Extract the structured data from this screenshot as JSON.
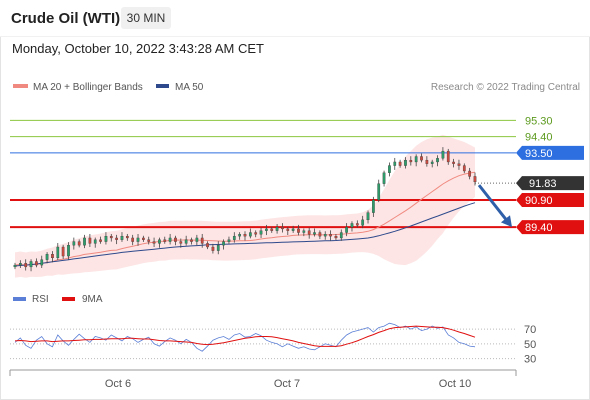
{
  "header": {
    "title": "Crude Oil (WTI)",
    "interval": "30 MIN",
    "timestamp": "Monday, October 10, 2022 3:43:28 AM CET",
    "credit": "Research © 2022 Trading Central"
  },
  "colors": {
    "ma20": "#f08a80",
    "band_fill": "#fde0e0",
    "ma50": "#2e4a8c",
    "price_up": "#2e9b6a",
    "price_down": "#c94a40",
    "resistance_green": "#8cc63f",
    "resistance_blue": "#2d6fe0",
    "support_red": "#e01010",
    "last_price": "#333333",
    "arrow": "#2e5fa8",
    "rsi": "#5b7fd6",
    "rsi_ma": "#e01010"
  },
  "chart_data": [
    {
      "type": "candlestick",
      "legend": [
        "MA 20 + Bollinger Bands",
        "MA 50"
      ],
      "x_tick_labels": [
        "Oct 6",
        "Oct 7",
        "Oct 10"
      ],
      "ylim": [
        86.2,
        96.7
      ],
      "levels": [
        {
          "value": 95.3,
          "label": "95.30",
          "kind": "resistance",
          "color": "#8cc63f"
        },
        {
          "value": 94.4,
          "label": "94.40",
          "kind": "resistance",
          "color": "#8cc63f"
        },
        {
          "value": 93.5,
          "label": "93.50",
          "kind": "pivot",
          "color": "#2d6fe0"
        },
        {
          "value": 90.9,
          "label": "90.90",
          "kind": "support",
          "color": "#e01010"
        },
        {
          "value": 89.4,
          "label": "89.40",
          "kind": "support",
          "color": "#e01010"
        }
      ],
      "last_price": {
        "value": 91.83,
        "label": "91.83"
      },
      "close": [
        87.3,
        87.4,
        87.2,
        87.5,
        87.3,
        87.6,
        87.9,
        87.7,
        88.3,
        87.8,
        88.4,
        88.6,
        88.4,
        88.8,
        88.5,
        88.7,
        88.6,
        88.9,
        88.8,
        88.7,
        88.9,
        88.8,
        88.6,
        88.8,
        88.7,
        88.6,
        88.5,
        88.7,
        88.6,
        88.8,
        88.6,
        88.5,
        88.7,
        88.6,
        88.8,
        88.5,
        88.3,
        88.1,
        88.4,
        88.6,
        88.7,
        88.9,
        89.0,
        88.9,
        89.1,
        89.0,
        89.2,
        89.3,
        89.2,
        89.4,
        89.3,
        89.2,
        89.3,
        89.1,
        89.2,
        89.0,
        89.1,
        88.9,
        89.0,
        88.9,
        88.8,
        89.1,
        89.4,
        89.6,
        89.5,
        89.8,
        90.2,
        90.9,
        91.8,
        92.4,
        92.8,
        93.0,
        92.8,
        93.1,
        93.0,
        93.3,
        93.1,
        92.9,
        93.0,
        93.2,
        93.6,
        93.0,
        92.9,
        92.8,
        92.5,
        92.2,
        91.9
      ],
      "ma20": [
        87.3,
        87.35,
        87.3,
        87.35,
        87.34,
        87.38,
        87.46,
        87.49,
        87.59,
        87.62,
        87.69,
        87.77,
        87.82,
        87.89,
        87.93,
        87.97,
        88.01,
        88.07,
        88.11,
        88.13,
        88.21,
        88.28,
        88.34,
        88.41,
        88.48,
        88.53,
        88.56,
        88.61,
        88.62,
        88.67,
        88.68,
        88.68,
        88.69,
        88.68,
        88.68,
        88.67,
        88.66,
        88.64,
        88.63,
        88.62,
        88.62,
        88.63,
        88.64,
        88.65,
        88.66,
        88.69,
        88.74,
        88.78,
        88.81,
        88.85,
        88.88,
        88.9,
        88.94,
        88.96,
        88.97,
        88.98,
        88.98,
        88.98,
        88.97,
        88.98,
        88.99,
        89.0,
        89.03,
        89.06,
        89.08,
        89.12,
        89.17,
        89.26,
        89.4,
        89.56,
        89.74,
        89.93,
        90.11,
        90.3,
        90.5,
        90.72,
        90.94,
        91.15,
        91.36,
        91.57,
        91.78,
        91.96,
        92.11,
        92.24,
        92.33,
        92.39,
        92.43
      ],
      "upper_band": [
        88.0,
        88.05,
        88.0,
        88.05,
        88.04,
        88.1,
        88.2,
        88.27,
        88.4,
        88.47,
        88.57,
        88.7,
        88.78,
        88.88,
        88.94,
        88.99,
        89.04,
        89.12,
        89.17,
        89.2,
        89.28,
        89.35,
        89.41,
        89.48,
        89.55,
        89.6,
        89.63,
        89.68,
        89.69,
        89.74,
        89.75,
        89.75,
        89.76,
        89.75,
        89.75,
        89.74,
        89.73,
        89.71,
        89.7,
        89.69,
        89.69,
        89.7,
        89.71,
        89.72,
        89.73,
        89.76,
        89.81,
        89.85,
        89.88,
        89.92,
        89.95,
        89.97,
        90.01,
        90.03,
        90.04,
        90.05,
        90.05,
        90.05,
        90.04,
        90.05,
        90.06,
        90.07,
        90.1,
        90.13,
        90.15,
        90.22,
        90.35,
        90.6,
        91.0,
        91.5,
        92.0,
        92.5,
        92.9,
        93.3,
        93.6,
        93.9,
        94.1,
        94.25,
        94.35,
        94.4,
        94.5,
        94.4,
        94.3,
        94.2,
        94.1,
        93.95,
        93.8
      ],
      "lower_band": [
        86.6,
        86.65,
        86.6,
        86.65,
        86.64,
        86.66,
        86.72,
        86.71,
        86.78,
        86.77,
        86.81,
        86.84,
        86.86,
        86.9,
        86.92,
        86.95,
        86.98,
        87.02,
        87.05,
        87.06,
        87.14,
        87.21,
        87.27,
        87.34,
        87.41,
        87.46,
        87.49,
        87.54,
        87.55,
        87.6,
        87.61,
        87.61,
        87.62,
        87.61,
        87.61,
        87.6,
        87.59,
        87.57,
        87.56,
        87.55,
        87.55,
        87.56,
        87.57,
        87.58,
        87.59,
        87.62,
        87.67,
        87.71,
        87.74,
        87.78,
        87.81,
        87.83,
        87.87,
        87.89,
        87.9,
        87.91,
        87.91,
        87.91,
        87.9,
        87.91,
        87.92,
        87.93,
        87.96,
        87.99,
        88.01,
        88.02,
        87.99,
        87.92,
        87.8,
        87.62,
        87.48,
        87.36,
        87.32,
        87.3,
        87.4,
        87.54,
        87.78,
        88.05,
        88.37,
        88.74,
        89.06,
        89.52,
        89.92,
        90.28,
        90.56,
        90.83,
        91.06
      ],
      "ma50": [
        87.25,
        87.28,
        87.3,
        87.33,
        87.36,
        87.4,
        87.44,
        87.48,
        87.52,
        87.56,
        87.6,
        87.64,
        87.68,
        87.72,
        87.76,
        87.8,
        87.84,
        87.88,
        87.92,
        87.96,
        88.0,
        88.03,
        88.06,
        88.09,
        88.12,
        88.15,
        88.18,
        88.21,
        88.24,
        88.27,
        88.3,
        88.32,
        88.34,
        88.36,
        88.38,
        88.4,
        88.42,
        88.43,
        88.44,
        88.45,
        88.46,
        88.47,
        88.48,
        88.49,
        88.5,
        88.51,
        88.52,
        88.53,
        88.54,
        88.55,
        88.56,
        88.57,
        88.58,
        88.59,
        88.6,
        88.61,
        88.62,
        88.63,
        88.64,
        88.65,
        88.66,
        88.68,
        88.7,
        88.72,
        88.74,
        88.77,
        88.8,
        88.85,
        88.92,
        89.0,
        89.08,
        89.17,
        89.26,
        89.36,
        89.46,
        89.57,
        89.68,
        89.79,
        89.9,
        90.01,
        90.12,
        90.23,
        90.34,
        90.45,
        90.56,
        90.66,
        90.75
      ],
      "forecast": {
        "from": 91.83,
        "to": 89.4
      }
    },
    {
      "type": "line",
      "legend": [
        "RSI",
        "9MA"
      ],
      "y_tick_labels": [
        "70",
        "50",
        "30"
      ],
      "ylim": [
        20,
        85
      ],
      "rsi": [
        52,
        58,
        48,
        44,
        55,
        60,
        50,
        46,
        62,
        54,
        48,
        56,
        63,
        57,
        52,
        60,
        58,
        55,
        62,
        58,
        54,
        60,
        57,
        52,
        56,
        59,
        50,
        47,
        53,
        58,
        55,
        50,
        56,
        52,
        44,
        40,
        47,
        55,
        58,
        60,
        56,
        62,
        64,
        59,
        60,
        64,
        61,
        55,
        52,
        50,
        46,
        50,
        47,
        44,
        46,
        43,
        42,
        46,
        50,
        48,
        46,
        55,
        62,
        66,
        68,
        70,
        72,
        66,
        72,
        74,
        78,
        76,
        72,
        74,
        70,
        73,
        68,
        70,
        74,
        71,
        73,
        62,
        58,
        52,
        50,
        47,
        46
      ],
      "rsi_ma": [
        54,
        54.5,
        54,
        53,
        53.5,
        54,
        54,
        53,
        53.5,
        54,
        54,
        54.5,
        55,
        55.5,
        55.5,
        56,
        56,
        56.5,
        57,
        57,
        57,
        57.5,
        57.5,
        57,
        56.5,
        56.5,
        55.5,
        54.5,
        54,
        54,
        53.5,
        53,
        52.5,
        52,
        50.5,
        49.5,
        49,
        49.5,
        50.5,
        51.5,
        53,
        54.5,
        56,
        57.5,
        58.5,
        59.5,
        60,
        60,
        59.5,
        58.5,
        57,
        55.5,
        54,
        52,
        50.5,
        49,
        47.5,
        46.5,
        46.5,
        46.5,
        46.5,
        47.5,
        49.5,
        51.5,
        54,
        57,
        60,
        62.5,
        65.5,
        68,
        70.5,
        72,
        72.5,
        73,
        73.5,
        74,
        73.5,
        73,
        72.5,
        72.5,
        72,
        70.5,
        68.5,
        66,
        64,
        61.5,
        59
      ]
    }
  ]
}
